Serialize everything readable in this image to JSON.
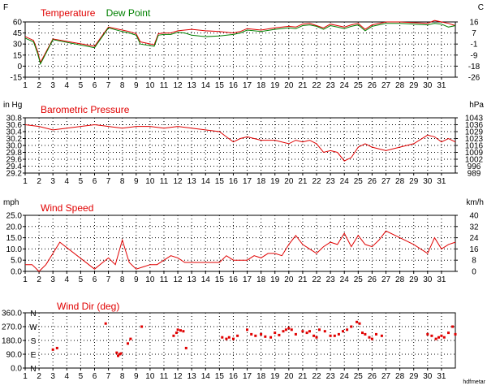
{
  "colors": {
    "background": "#ffffff",
    "plot_bg": "#ffffff",
    "grid": "#000000",
    "axis": "#000000",
    "red": "#e00000",
    "green": "#008000",
    "text": "#000000"
  },
  "watermark": "hdfmetar",
  "x_day_labels": [
    "1",
    "2",
    "3",
    "4",
    "5",
    "6",
    "7",
    "8",
    "9",
    "10",
    "11",
    "12",
    "13",
    "14",
    "15",
    "16",
    "17",
    "18",
    "19",
    "20",
    "21",
    "22",
    "23",
    "24",
    "25",
    "26",
    "27",
    "28",
    "29",
    "30",
    "31"
  ],
  "chart_data": [
    {
      "id": "temp",
      "type": "line",
      "title_parts": [
        {
          "text": "Temperature",
          "color": "#e00000"
        },
        {
          "text": "Dew Point",
          "color": "#008000"
        }
      ],
      "left_unit": "F",
      "right_unit": "C",
      "ylim": [
        -15,
        60
      ],
      "left_ticks": [
        "60",
        "45",
        "30",
        "15",
        "0",
        "-15"
      ],
      "right_ticks": [
        "16",
        "7",
        "-1",
        "-9",
        "-18",
        "-26"
      ],
      "xlim": [
        1,
        32
      ],
      "grid": true,
      "series": [
        {
          "name": "Temperature",
          "color": "#e00000",
          "x": [
            1,
            1.6,
            1.9,
            2.1,
            2.3,
            3,
            6,
            7,
            8,
            8.5,
            9,
            9.3,
            10.3,
            10.6,
            11,
            11.5,
            12,
            12.5,
            13,
            14,
            15,
            16,
            16.5,
            17,
            18,
            19,
            20,
            20.5,
            21,
            21.5,
            22,
            22.5,
            23,
            23.5,
            24,
            24.5,
            25,
            25.5,
            26,
            27,
            28,
            29,
            30,
            30.5,
            31,
            31.5,
            32
          ],
          "y": [
            40,
            35,
            20,
            5,
            12,
            37,
            27,
            53,
            49,
            47,
            44,
            33,
            29,
            44,
            45,
            45,
            48,
            49,
            50,
            48,
            47,
            45,
            47,
            51,
            49,
            52,
            54,
            53,
            57,
            58,
            55,
            52,
            57,
            55,
            53,
            56,
            58,
            50,
            56,
            60,
            60,
            59,
            58,
            62,
            60,
            58,
            55
          ]
        },
        {
          "name": "Dew Point",
          "color": "#008000",
          "x": [
            1,
            1.6,
            1.9,
            2.1,
            2.3,
            3,
            6,
            7,
            8,
            8.5,
            9,
            9.3,
            10.3,
            10.6,
            11,
            11.5,
            12,
            12.5,
            13,
            14,
            15,
            16,
            16.5,
            17,
            18,
            19,
            20,
            20.5,
            21,
            21.5,
            22,
            22.5,
            23,
            23.5,
            24,
            24.5,
            25,
            25.5,
            26,
            27,
            28,
            29,
            30,
            30.5,
            31,
            31.5,
            32
          ],
          "y": [
            38,
            33,
            17,
            3,
            10,
            36,
            25,
            52,
            47,
            45,
            42,
            30,
            27,
            42,
            43,
            43,
            46,
            45,
            42,
            40,
            41,
            43,
            45,
            49,
            47,
            50,
            52,
            51,
            55,
            56,
            54,
            50,
            55,
            53,
            51,
            54,
            56,
            48,
            54,
            58,
            58,
            57,
            56,
            58,
            57,
            53,
            55
          ]
        }
      ]
    },
    {
      "id": "pressure",
      "type": "line",
      "title_parts": [
        {
          "text": "Barometric Pressure",
          "color": "#e00000"
        }
      ],
      "left_unit": "in Hg",
      "right_unit": "hPa",
      "ylim": [
        29.2,
        30.8
      ],
      "left_ticks": [
        "30.8",
        "30.6",
        "30.4",
        "30.2",
        "30.0",
        "29.8",
        "29.6",
        "29.4",
        "29.2"
      ],
      "right_ticks": [
        "1043",
        "1036",
        "1029",
        "1023",
        "1016",
        "1009",
        "1002",
        "996",
        "989"
      ],
      "xlim": [
        1,
        32
      ],
      "grid": true,
      "series": [
        {
          "name": "Barometric Pressure",
          "color": "#e00000",
          "x": [
            1,
            2,
            3,
            4,
            5,
            6,
            7,
            8,
            9,
            10,
            11,
            12,
            13,
            14,
            15,
            15.5,
            16,
            16.5,
            17,
            17.5,
            18,
            19,
            20,
            20.5,
            21,
            21.5,
            22,
            22.5,
            23,
            23.5,
            24,
            24.5,
            25,
            25.5,
            26,
            27,
            28,
            29,
            30,
            30.5,
            31,
            31.5,
            32
          ],
          "y": [
            30.6,
            30.55,
            30.45,
            30.5,
            30.55,
            30.6,
            30.55,
            30.5,
            30.55,
            30.55,
            30.5,
            30.55,
            30.5,
            30.45,
            30.4,
            30.25,
            30.1,
            30.2,
            30.25,
            30.2,
            30.15,
            30.15,
            30.05,
            30.15,
            30.1,
            30.15,
            30.05,
            29.8,
            29.85,
            29.8,
            29.55,
            29.65,
            29.95,
            30.05,
            29.95,
            29.85,
            29.95,
            30.05,
            30.3,
            30.25,
            30.1,
            30.2,
            30.1
          ]
        }
      ]
    },
    {
      "id": "wind",
      "type": "line",
      "title_parts": [
        {
          "text": "Wind Speed",
          "color": "#e00000"
        }
      ],
      "left_unit": "mph",
      "right_unit": "km/h",
      "ylim": [
        0,
        25
      ],
      "left_ticks": [
        "25.0",
        "20.0",
        "15.0",
        "10.0",
        "5.0",
        "0.0"
      ],
      "right_ticks": [
        "40",
        "32",
        "24",
        "16",
        "8",
        "0"
      ],
      "xlim": [
        1,
        32
      ],
      "grid": true,
      "series": [
        {
          "name": "Wind Speed",
          "color": "#e00000",
          "x": [
            1,
            1.5,
            2,
            2.5,
            3,
            3.5,
            6,
            7,
            7.5,
            8,
            8.5,
            9,
            9.5,
            10,
            10.5,
            11,
            11.5,
            12,
            12.5,
            13,
            14,
            15,
            15.5,
            16,
            17,
            17.5,
            18,
            18.5,
            19,
            19.5,
            20,
            20.5,
            21,
            21.5,
            22,
            22.5,
            23,
            23.5,
            24,
            24.5,
            25,
            25.5,
            26,
            26.5,
            27,
            28,
            29,
            30,
            30.5,
            31,
            31.5,
            32
          ],
          "y": [
            3,
            3,
            0,
            3,
            8,
            13,
            1,
            6,
            3,
            14,
            4,
            1,
            2,
            3,
            3,
            5,
            7,
            6,
            4,
            4,
            4,
            4,
            7,
            5,
            5,
            7,
            6,
            8,
            8,
            7,
            12,
            16,
            12,
            10,
            8,
            11,
            13,
            12,
            17,
            11,
            16,
            12,
            11,
            14,
            18,
            15,
            12,
            8,
            15,
            10,
            12,
            13
          ]
        }
      ]
    },
    {
      "id": "winddir",
      "type": "scatter",
      "title_parts": [
        {
          "text": "Wind Dir (deg)",
          "color": "#e00000"
        }
      ],
      "ylim": [
        0,
        360
      ],
      "left_ticks": [
        "360.0",
        "270.0",
        "180.0",
        "90.0",
        "0.0"
      ],
      "compass_labels": [
        "N",
        "W",
        "S",
        "E",
        "N"
      ],
      "xlim": [
        1,
        32
      ],
      "grid": true,
      "series": [
        {
          "name": "Wind Dir",
          "color": "#e00000",
          "x": [
            3,
            3.3,
            6.8,
            7.6,
            7.7,
            7.8,
            7.9,
            8.4,
            8.6,
            9.4,
            11.7,
            11.9,
            12,
            12.2,
            12.4,
            12.6,
            15.2,
            15.5,
            15.7,
            16,
            16.3,
            17,
            17.3,
            17.6,
            18,
            18.3,
            18.7,
            19,
            19.3,
            19.6,
            19.8,
            20,
            20.2,
            20.5,
            21,
            21.3,
            21.5,
            21.8,
            22,
            22.2,
            22.6,
            23,
            23.3,
            23.6,
            23.9,
            24.2,
            24.5,
            24.9,
            25.1,
            25.3,
            25.5,
            25.8,
            26,
            26.3,
            26.7,
            30,
            30.3,
            30.6,
            30.8,
            31,
            31.2,
            31.5,
            31.8,
            32
          ],
          "y": [
            120,
            130,
            290,
            100,
            80,
            90,
            95,
            160,
            190,
            270,
            210,
            230,
            250,
            245,
            240,
            130,
            200,
            190,
            200,
            190,
            210,
            250,
            220,
            210,
            220,
            205,
            200,
            230,
            215,
            240,
            250,
            260,
            250,
            220,
            240,
            230,
            240,
            210,
            200,
            250,
            240,
            210,
            210,
            220,
            240,
            250,
            270,
            300,
            290,
            230,
            220,
            200,
            190,
            220,
            210,
            220,
            210,
            190,
            200,
            210,
            200,
            230,
            270,
            220
          ]
        }
      ]
    }
  ]
}
